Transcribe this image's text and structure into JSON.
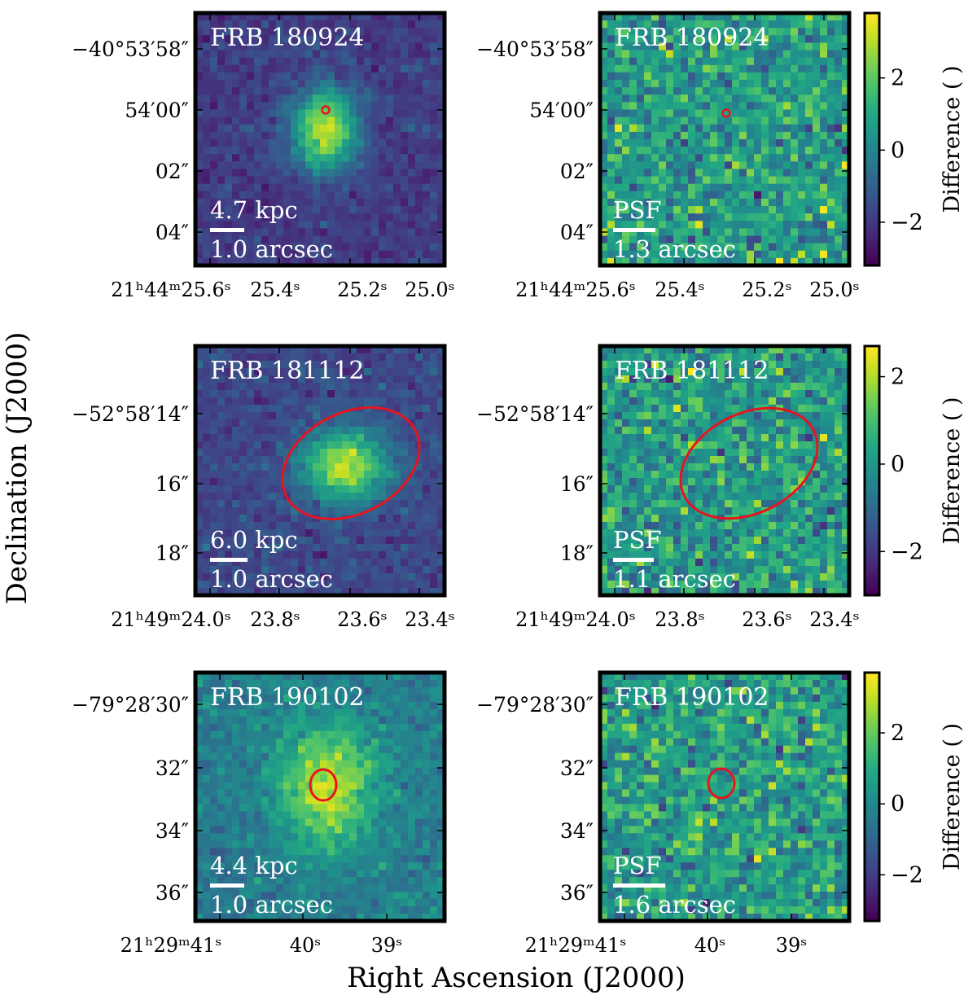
{
  "figure": {
    "ylabel": "Declination (J2000)",
    "xlabel": "Right Ascension (J2000)"
  },
  "chart_data": [
    {
      "type": "heatmap",
      "name": "FRB 180924",
      "label": "FRB 180924",
      "kind": "image",
      "scale_label_top": "4.7 kpc",
      "scale_label_bottom": "1.0 arcsec",
      "yticks": [
        "−40°53′58″",
        "54′00″",
        "02″",
        "04″"
      ],
      "xticks": [
        "21ʰ44ᵐ25.6ˢ",
        "25.4ˢ",
        "25.2ˢ",
        "25.0ˢ"
      ],
      "marker": "circle",
      "seed": 11,
      "noise": 0.045,
      "base": 0.18,
      "source": {
        "peak": 0.75,
        "sx": 0.09,
        "sy": 0.11,
        "cx": 0.52,
        "cy": 0.46
      },
      "colorbar": null
    },
    {
      "type": "heatmap",
      "name": "FRB 180924 residual",
      "label": "FRB 180924",
      "kind": "residual",
      "scale_label_top": "PSF",
      "scale_label_bottom": "1.3 arcsec",
      "yticks": [
        "−40°53′58″",
        "54′00″",
        "02″",
        "04″"
      ],
      "xticks": [
        "21ʰ44ᵐ25.6ˢ",
        "25.4ˢ",
        "25.2ˢ",
        "25.0ˢ"
      ],
      "marker": "circle",
      "seed": 21,
      "colorbar": {
        "label": "Difference (  )",
        "min": -3.2,
        "max": 3.8,
        "ticks": [
          -2,
          0,
          2
        ]
      }
    },
    {
      "type": "heatmap",
      "name": "FRB 181112",
      "label": "FRB 181112",
      "kind": "image",
      "scale_label_top": "6.0 kpc",
      "scale_label_bottom": "1.0 arcsec",
      "yticks": [
        "−52°58′14″",
        "16″",
        "18″"
      ],
      "xticks": [
        "21ʰ49ᵐ24.0ˢ",
        "23.8ˢ",
        "23.6ˢ",
        "23.4ˢ"
      ],
      "marker": "ellipse-large",
      "seed": 31,
      "noise": 0.05,
      "base": 0.22,
      "source": {
        "peak": 0.7,
        "sx": 0.12,
        "sy": 0.1,
        "cx": 0.6,
        "cy": 0.48
      },
      "colorbar": null
    },
    {
      "type": "heatmap",
      "name": "FRB 181112 residual",
      "label": "FRB 181112",
      "kind": "residual",
      "scale_label_top": "PSF",
      "scale_label_bottom": "1.1 arcsec",
      "yticks": [
        "−52°58′14″",
        "16″",
        "18″"
      ],
      "xticks": [
        "21ʰ49ᵐ24.0ˢ",
        "23.8ˢ",
        "23.6ˢ",
        "23.4ˢ"
      ],
      "marker": "ellipse-large",
      "seed": 41,
      "colorbar": {
        "label": "Difference (  )",
        "min": -3.0,
        "max": 2.7,
        "ticks": [
          -2,
          0,
          2
        ]
      }
    },
    {
      "type": "heatmap",
      "name": "FRB 190102",
      "label": "FRB 190102",
      "kind": "image",
      "scale_label_top": "4.4 kpc",
      "scale_label_bottom": "1.0 arcsec",
      "yticks": [
        "−79°28′30″",
        "32″",
        "34″",
        "36″"
      ],
      "xticks": [
        "21ʰ29ᵐ41ˢ",
        "40ˢ",
        "39ˢ"
      ],
      "marker": "ellipse-small",
      "seed": 51,
      "noise": 0.06,
      "base": 0.42,
      "source": {
        "peak": 0.48,
        "sx": 0.13,
        "sy": 0.17,
        "cx": 0.53,
        "cy": 0.46
      },
      "colorbar": null
    },
    {
      "type": "heatmap",
      "name": "FRB 190102 residual",
      "label": "FRB 190102",
      "kind": "residual",
      "scale_label_top": "PSF",
      "scale_label_bottom": "1.6 arcsec",
      "yticks": [
        "−79°28′30″",
        "32″",
        "34″",
        "36″"
      ],
      "xticks": [
        "21ʰ29ᵐ41ˢ",
        "40ˢ",
        "39ˢ"
      ],
      "marker": "ellipse-small",
      "seed": 61,
      "colorbar": {
        "label": "Difference (  )",
        "min": -3.3,
        "max": 3.7,
        "ticks": [
          -2,
          0,
          2
        ]
      }
    }
  ]
}
